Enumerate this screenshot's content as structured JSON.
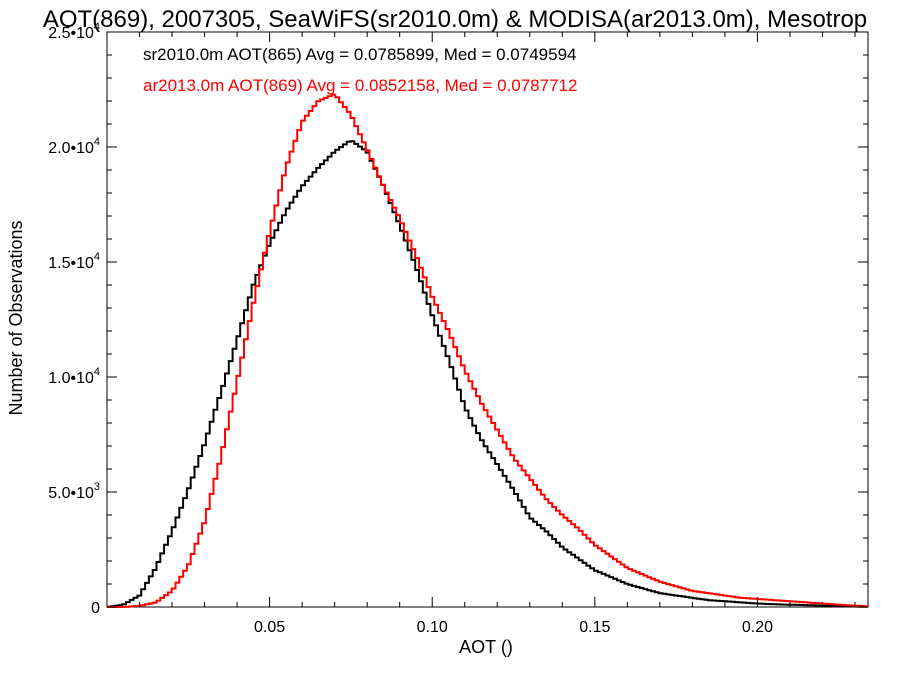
{
  "chart_data": {
    "type": "line",
    "title": "AOT(869), 2007305, SeaWiFS(sr2010.0m) & MODISA(ar2013.0m), Mesotrop",
    "xlabel": "AOT ()",
    "ylabel": "Number of Observations",
    "xlim": [
      0.0,
      0.234
    ],
    "ylim": [
      0,
      25000
    ],
    "x_ticks": [
      {
        "value": 0.05,
        "label": "0.05"
      },
      {
        "value": 0.1,
        "label": "0.10"
      },
      {
        "value": 0.15,
        "label": "0.15"
      },
      {
        "value": 0.2,
        "label": "0.20"
      }
    ],
    "y_ticks": [
      {
        "value": 0,
        "mantissa": "0",
        "exponent": ""
      },
      {
        "value": 5000,
        "mantissa": "5.0•10",
        "exponent": "3"
      },
      {
        "value": 10000,
        "mantissa": "1.0•10",
        "exponent": "4"
      },
      {
        "value": 15000,
        "mantissa": "1.5•10",
        "exponent": "4"
      },
      {
        "value": 20000,
        "mantissa": "2.0•10",
        "exponent": "4"
      },
      {
        "value": 25000,
        "mantissa": "2.5•10",
        "exponent": "4"
      }
    ],
    "grid": false,
    "legend_placement": "top-left",
    "series": [
      {
        "name": "sr2010.0m AOT(865) Avg = 0.0785899, Med = 0.0749594",
        "color": "#000000",
        "x": [
          0.0,
          0.005,
          0.01,
          0.015,
          0.02,
          0.025,
          0.03,
          0.035,
          0.04,
          0.045,
          0.05,
          0.055,
          0.06,
          0.065,
          0.07,
          0.075,
          0.08,
          0.085,
          0.09,
          0.095,
          0.1,
          0.105,
          0.11,
          0.115,
          0.12,
          0.125,
          0.13,
          0.135,
          0.14,
          0.145,
          0.15,
          0.155,
          0.16,
          0.165,
          0.17,
          0.175,
          0.18,
          0.185,
          0.19,
          0.195,
          0.2,
          0.205,
          0.21,
          0.215,
          0.22,
          0.225,
          0.23,
          0.234
        ],
        "y": [
          0,
          100,
          500,
          1700,
          3300,
          5100,
          7100,
          9300,
          11600,
          14000,
          15800,
          17200,
          18300,
          19100,
          19800,
          20300,
          19800,
          18300,
          16600,
          14800,
          12700,
          10800,
          8700,
          7300,
          6200,
          5100,
          3900,
          3300,
          2600,
          2100,
          1600,
          1300,
          1000,
          800,
          600,
          500,
          400,
          300,
          250,
          200,
          150,
          120,
          100,
          80,
          60,
          40,
          20,
          10
        ]
      },
      {
        "name": "ar2013.0m AOT(869) Avg = 0.0852158, Med = 0.0787712",
        "color": "#ff0000",
        "x": [
          0.0,
          0.005,
          0.01,
          0.015,
          0.02,
          0.025,
          0.03,
          0.035,
          0.04,
          0.045,
          0.05,
          0.055,
          0.06,
          0.065,
          0.07,
          0.075,
          0.08,
          0.085,
          0.09,
          0.095,
          0.1,
          0.105,
          0.11,
          0.115,
          0.12,
          0.125,
          0.13,
          0.135,
          0.14,
          0.145,
          0.15,
          0.155,
          0.16,
          0.165,
          0.17,
          0.175,
          0.18,
          0.185,
          0.19,
          0.195,
          0.2,
          0.205,
          0.21,
          0.215,
          0.22,
          0.225,
          0.23,
          0.234
        ],
        "y": [
          0,
          0,
          50,
          200,
          700,
          1800,
          3700,
          6500,
          9800,
          13200,
          16300,
          19100,
          21100,
          22000,
          22300,
          21400,
          19900,
          18300,
          16900,
          15300,
          13500,
          12000,
          10300,
          8900,
          7700,
          6500,
          5600,
          4700,
          4000,
          3400,
          2700,
          2200,
          1700,
          1400,
          1100,
          900,
          700,
          600,
          500,
          400,
          350,
          300,
          250,
          200,
          150,
          100,
          60,
          30
        ]
      }
    ]
  }
}
